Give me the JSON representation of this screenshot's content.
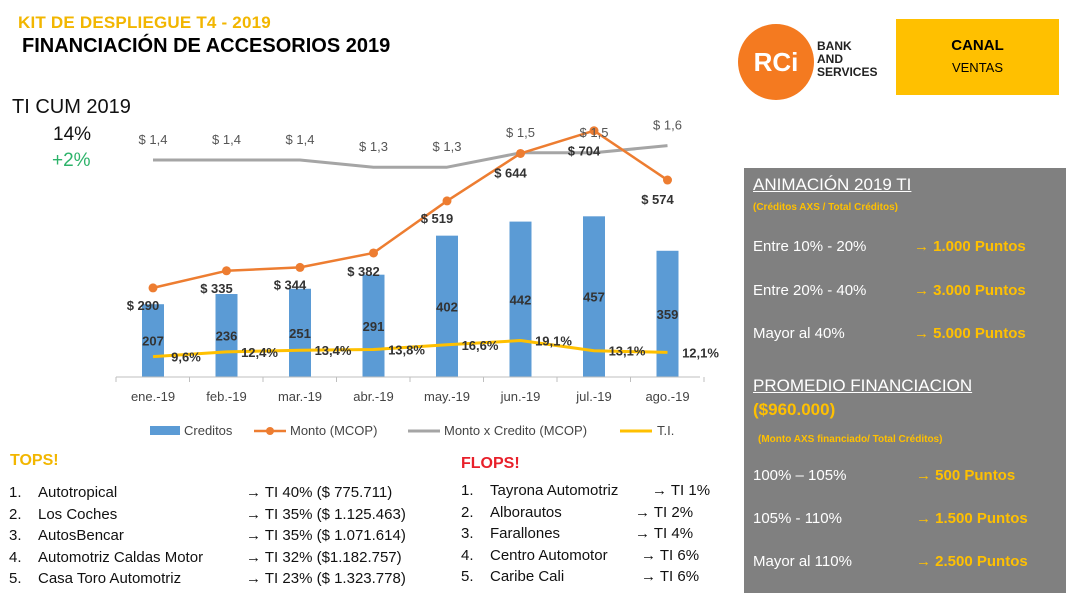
{
  "header": {
    "kit": "KIT DE DESPLIEGUE T4 - 2019",
    "title": "FINANCIACIÓN DE ACCESORIOS 2019"
  },
  "logo": {
    "mark": "RCi",
    "line1": "BANK",
    "line2": "AND",
    "line3": "SERVICES",
    "color": "#f47a20"
  },
  "canal": {
    "title": "CANAL",
    "subtitle": "VENTAS",
    "color": "#ffc000"
  },
  "ti_cum": {
    "label": "TI CUM 2019",
    "value": "14%",
    "delta": "+2%"
  },
  "chart_data": {
    "type": "bar",
    "categories": [
      "ene.-19",
      "feb.-19",
      "mar.-19",
      "abr.-19",
      "may.-19",
      "jun.-19",
      "jul.-19",
      "ago.-19"
    ],
    "series": [
      {
        "name": "Creditos",
        "kind": "bar",
        "color": "#5b9bd5",
        "values": [
          207,
          236,
          251,
          291,
          402,
          442,
          457,
          359
        ],
        "labels": [
          "207",
          "236",
          "251",
          "291",
          "402",
          "442",
          "457",
          "359"
        ]
      },
      {
        "name": "Monto (MCOP)",
        "kind": "line",
        "color": "#ed7d31",
        "values": [
          290,
          335,
          344,
          382,
          519,
          644,
          704,
          574
        ],
        "labels": [
          "$ 290",
          "$ 335",
          "$ 344",
          "$ 382",
          "$ 519",
          "$ 644",
          "$ 704",
          "$ 574"
        ]
      },
      {
        "name": "Monto x Credito (MCOP)",
        "kind": "line",
        "color": "#a5a5a5",
        "values": [
          1.4,
          1.4,
          1.4,
          1.3,
          1.3,
          1.5,
          1.5,
          1.6
        ],
        "labels": [
          "$ 1,4",
          "$ 1,4",
          "$ 1,4",
          "$ 1,3",
          "$ 1,3",
          "$ 1,5",
          "$ 1,5",
          "$ 1,6"
        ]
      },
      {
        "name": "T.I.",
        "kind": "line",
        "color": "#ffc000",
        "values": [
          9.6,
          12.4,
          13.4,
          13.8,
          16.6,
          19.1,
          13.1,
          12.1
        ],
        "labels": [
          "9,6%",
          "12,4%",
          "13,4%",
          "13,8%",
          "16,6%",
          "19,1%",
          "13,1%",
          "12,1%"
        ]
      }
    ],
    "legend_position": "bottom",
    "grid": false
  },
  "tops": {
    "title": "TOPS!",
    "items": [
      {
        "num": "1.",
        "name": "Autotropical",
        "ti": "→ TI 40% ($ 775.711)"
      },
      {
        "num": "2.",
        "name": "Los Coches",
        "ti": "→ TI 35% ($ 1.125.463)"
      },
      {
        "num": "3.",
        "name": "AutosBencar",
        "ti": "→ TI 35% ($ 1.071.614)"
      },
      {
        "num": "4.",
        "name": "Automotriz Caldas Motor",
        "ti": "→ TI 32% ($1.182.757)"
      },
      {
        "num": "5.",
        "name": "Casa Toro Automotriz",
        "ti": "→ TI 23% ($ 1.323.778)"
      }
    ]
  },
  "flops": {
    "title": "FLOPS!",
    "items": [
      {
        "num": "1.",
        "name": "Tayrona Automotriz",
        "ti": "→ TI 1%"
      },
      {
        "num": "2.",
        "name": "Alborautos",
        "ti": "→ TI 2%"
      },
      {
        "num": "3.",
        "name": "Farallones",
        "ti": "→ TI 4%"
      },
      {
        "num": "4.",
        "name": "Centro Automotor",
        "ti": "→ TI 6%"
      },
      {
        "num": "5.",
        "name": "Caribe Cali",
        "ti": "→ TI 6%"
      }
    ]
  },
  "panel": {
    "anim_title": "ANIMACIÓN 2019 TI",
    "anim_sub": "(Créditos AXS / Total Créditos)",
    "anim_rows": [
      {
        "range": "Entre 10% - 20%",
        "points": "→ 1.000 Puntos"
      },
      {
        "range": "Entre 20% - 40%",
        "points": "→ 3.000 Puntos"
      },
      {
        "range": "Mayor al 40%",
        "points": "→ 5.000 Puntos"
      }
    ],
    "prom_title": "PROMEDIO FINANCIACION",
    "prom_amount": "($960.000)",
    "prom_sub": "(Monto AXS financiado/ Total Créditos)",
    "prom_rows": [
      {
        "range": "100% – 105%",
        "points": "→ 500 Puntos"
      },
      {
        "range": "105% - 110%",
        "points": "→ 1.500 Puntos"
      },
      {
        "range": "Mayor al 110%",
        "points": "→ 2.500 Puntos"
      }
    ],
    "bg_color": "#808080",
    "accent": "#ffc000"
  }
}
